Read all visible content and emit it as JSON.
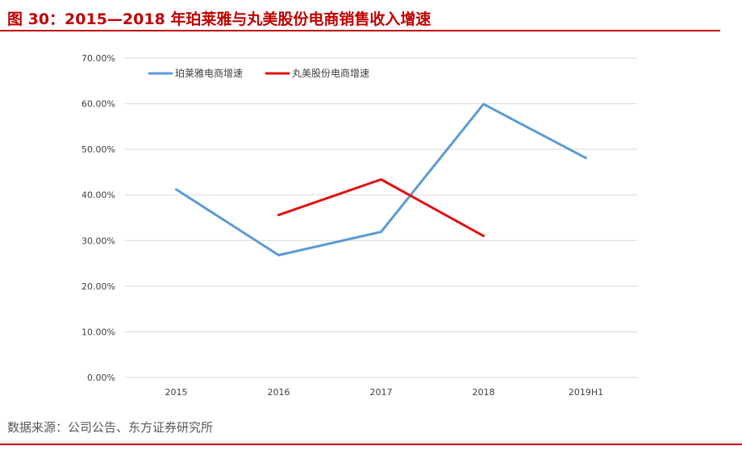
{
  "figure": {
    "title": "图 30：2015—2018 年珀莱雅与丸美股份电商销售收入增速",
    "source": "数据来源：公司公告、东方证券研究所"
  },
  "colors": {
    "accent": "#c00000",
    "series_1": "#5b9bd5",
    "series_2": "#e01010",
    "grid": "#d9d9d9"
  },
  "chart_data": {
    "type": "line",
    "categories": [
      "2015",
      "2016",
      "2017",
      "2018",
      "2019H1"
    ],
    "series": [
      {
        "name": "珀莱雅电商增速",
        "values": [
          41.2,
          26.8,
          31.9,
          59.9,
          48.1
        ]
      },
      {
        "name": "丸美股份电商增速",
        "values": [
          null,
          35.6,
          43.4,
          31.0,
          null
        ]
      }
    ],
    "ylim": [
      0,
      70
    ],
    "yticks": [
      "0.00%",
      "10.00%",
      "20.00%",
      "30.00%",
      "40.00%",
      "50.00%",
      "60.00%",
      "70.00%"
    ],
    "grid": true,
    "legend_position": "top-left"
  }
}
